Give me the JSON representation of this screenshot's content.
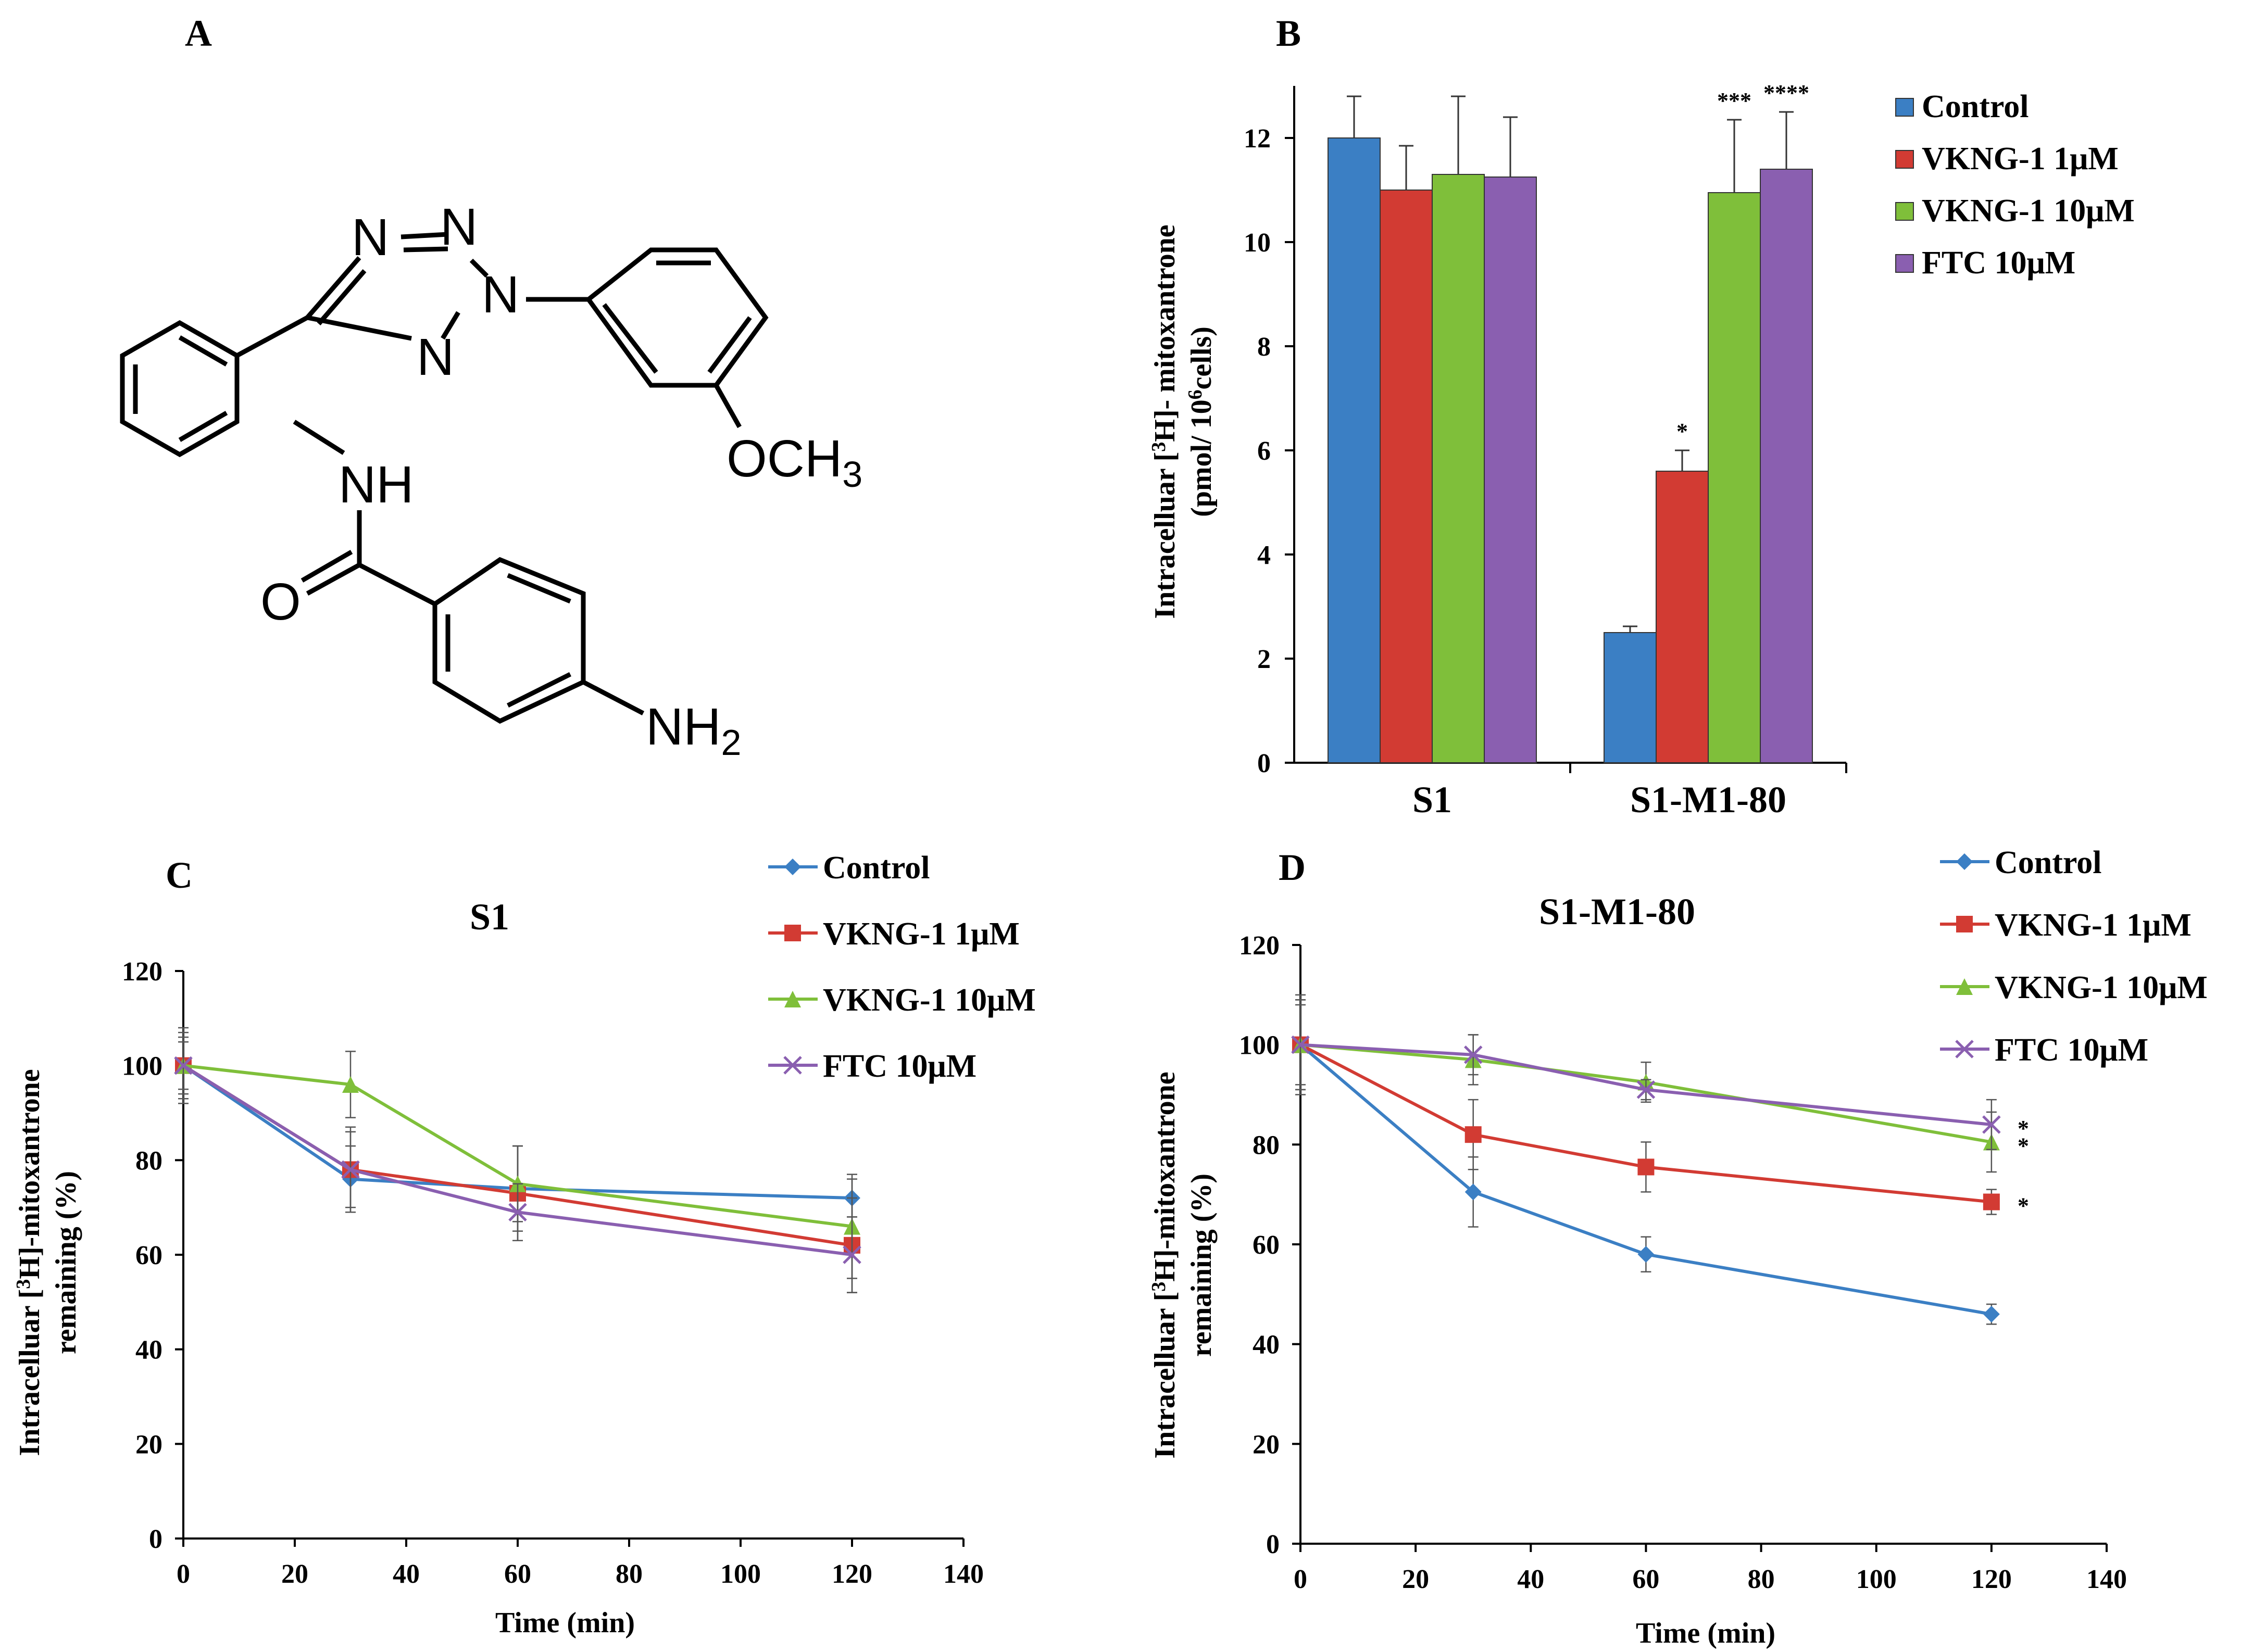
{
  "panel_labels": [
    "A",
    "B",
    "C",
    "D"
  ],
  "structure": {
    "atoms": [
      "N",
      "N",
      "N",
      "N",
      "NH",
      "O",
      "OCH",
      "3",
      "NH",
      "2"
    ]
  },
  "colors": {
    "Control": "#3b7fc4",
    "VKNG-1 1μM": "#d23b33",
    "VKNG-1 10μM": "#7fbf3a",
    "FTC 10μM": "#8a5fb0"
  },
  "chart_data": [
    {
      "type": "bar",
      "panel": "B",
      "ylabel_line1": "Intracelluar [",
      "ylabel_sup1": "3",
      "ylabel_line1b": "H]- mitoxantrone",
      "ylabel_line2": "(pmol/ 10",
      "ylabel_sup2": "6",
      "ylabel_line2b": "cells)",
      "categories": [
        "S1",
        "S1-M1-80"
      ],
      "ylim": [
        0,
        13
      ],
      "yticks": [
        0,
        2,
        4,
        6,
        8,
        10,
        12
      ],
      "legend_position": "right",
      "series": [
        {
          "name": "Control",
          "values": [
            12.0,
            2.5
          ],
          "errors": [
            0.8,
            0.12
          ],
          "sig": [
            "",
            ""
          ]
        },
        {
          "name": "VKNG-1 1μM",
          "values": [
            11.0,
            5.6
          ],
          "errors": [
            0.85,
            0.4
          ],
          "sig": [
            "",
            "*"
          ]
        },
        {
          "name": "VKNG-1 10μM",
          "values": [
            11.3,
            10.95
          ],
          "errors": [
            1.5,
            1.4
          ],
          "sig": [
            "",
            "***"
          ]
        },
        {
          "name": "FTC 10μM",
          "values": [
            11.25,
            11.4
          ],
          "errors": [
            1.15,
            1.1
          ],
          "sig": [
            "",
            "****"
          ]
        }
      ]
    },
    {
      "type": "line",
      "panel": "C",
      "title": "S1",
      "xlabel": "Time (min)",
      "ylabel_line1": "Intracelluar [",
      "ylabel_sup": "3",
      "ylabel_line1b": "H]-mitoxantrone",
      "ylabel_line2": "remaining (%)",
      "x": [
        0,
        30,
        60,
        120
      ],
      "xlim": [
        0,
        140
      ],
      "ylim": [
        0,
        120
      ],
      "xticks": [
        0,
        20,
        40,
        60,
        80,
        100,
        120,
        140
      ],
      "yticks": [
        0,
        20,
        40,
        60,
        80,
        100,
        120
      ],
      "legend_position": "top-right",
      "series": [
        {
          "name": "Control",
          "marker": "diamond",
          "values": [
            100,
            76,
            74,
            72
          ],
          "errors": [
            7,
            7,
            9,
            4
          ]
        },
        {
          "name": "VKNG-1 1μM",
          "marker": "square",
          "values": [
            100,
            78,
            73,
            62
          ],
          "errors": [
            8,
            9,
            10,
            10
          ]
        },
        {
          "name": "VKNG-1 10μM",
          "marker": "triangle",
          "values": [
            100,
            96,
            75,
            66
          ],
          "errors": [
            5,
            7,
            8,
            11
          ]
        },
        {
          "name": "FTC 10μM",
          "marker": "x",
          "values": [
            100,
            78,
            69,
            60
          ],
          "errors": [
            6,
            8,
            6,
            8
          ]
        }
      ]
    },
    {
      "type": "line",
      "panel": "D",
      "title": "S1-M1-80",
      "xlabel": "Time (min)",
      "ylabel_line1": "Intracelluar [",
      "ylabel_sup": "3",
      "ylabel_line1b": "H]-mitoxantrone",
      "ylabel_line2": "remaining (%)",
      "x": [
        0,
        30,
        60,
        120
      ],
      "xlim": [
        0,
        140
      ],
      "ylim": [
        0,
        120
      ],
      "xticks": [
        0,
        20,
        40,
        60,
        80,
        100,
        120,
        140
      ],
      "yticks": [
        0,
        20,
        40,
        60,
        80,
        100,
        120
      ],
      "legend_position": "top-right",
      "series": [
        {
          "name": "Control",
          "marker": "diamond",
          "values": [
            100,
            70.5,
            58,
            46
          ],
          "errors": [
            10,
            7,
            3.5,
            2
          ],
          "sig": ""
        },
        {
          "name": "VKNG-1 1μM",
          "marker": "square",
          "values": [
            100,
            82,
            75.5,
            68.5
          ],
          "errors": [
            9,
            7,
            5,
            2.5
          ],
          "sig": "*"
        },
        {
          "name": "VKNG-1 10μM",
          "marker": "triangle",
          "values": [
            100,
            97,
            92.5,
            80.5
          ],
          "errors": [
            8,
            5,
            4,
            6
          ],
          "sig": "*"
        },
        {
          "name": "FTC 10μM",
          "marker": "x",
          "values": [
            100,
            98,
            91,
            84
          ],
          "errors": [
            9,
            4,
            2,
            5
          ],
          "sig": "*"
        }
      ]
    }
  ]
}
